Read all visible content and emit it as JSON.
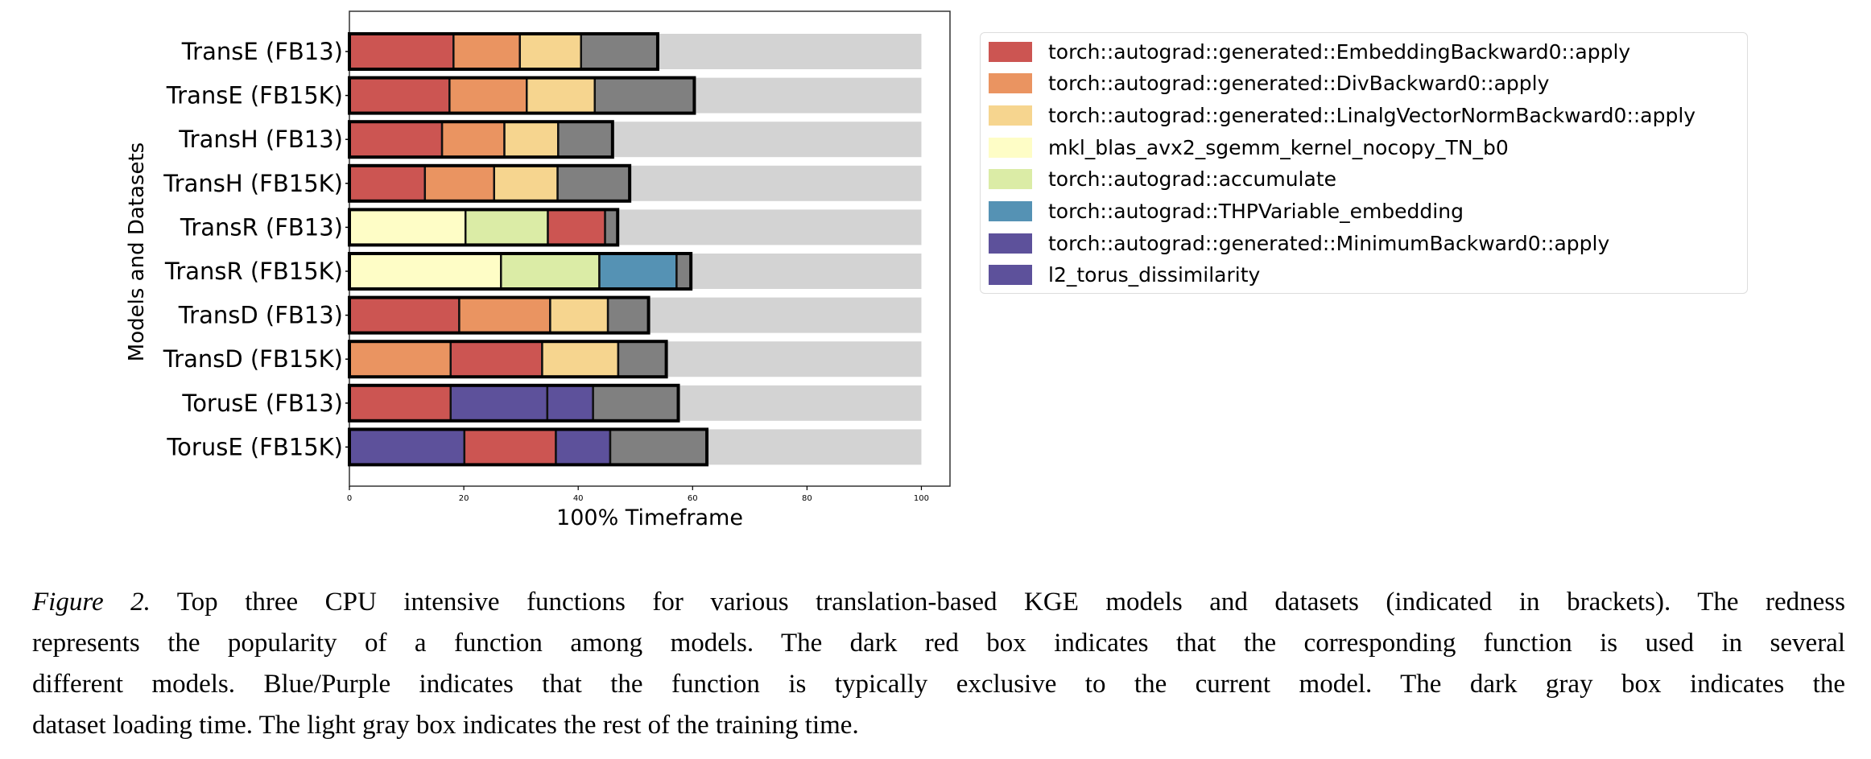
{
  "chart_data": {
    "type": "bar",
    "orientation": "horizontal",
    "stacked": true,
    "xlabel": "100% Timeframe",
    "ylabel": "Models and Datasets",
    "xlim": [
      0,
      105
    ],
    "xticks": [
      0,
      20,
      40,
      60,
      80,
      100
    ],
    "grid": false,
    "legend_placement": "outside-right",
    "categories": [
      "TransE (FB13)",
      "TransE (FB15K)",
      "TransH (FB13)",
      "TransH (FB15K)",
      "TransR (FB13)",
      "TransR (FB15K)",
      "TransD (FB13)",
      "TransD (FB15K)",
      "TorusE (FB13)",
      "TorusE (FB15K)"
    ],
    "functions": [
      {
        "name": "torch::autograd::generated::EmbeddingBackward0::apply",
        "color": "#cc5552"
      },
      {
        "name": "torch::autograd::generated::DivBackward0::apply",
        "color": "#ea9461"
      },
      {
        "name": "torch::autograd::generated::LinalgVectorNormBackward0::apply",
        "color": "#f6d58f"
      },
      {
        "name": "mkl_blas_avx2_sgemm_kernel_nocopy_TN_b0",
        "color": "#fefdc6"
      },
      {
        "name": "torch::autograd::accumulate",
        "color": "#dbeca6"
      },
      {
        "name": "torch::autograd::THPVariable_embedding",
        "color": "#5592b4"
      },
      {
        "name": "torch::autograd::generated::MinimumBackward0::apply",
        "color": "#5d519b"
      },
      {
        "name": "l2_torus_dissimilarity",
        "color": "#5d519b"
      }
    ],
    "dataset_loading_color": "#808080",
    "rest_of_training_color": "#d3d3d3",
    "total": 100,
    "bars": [
      {
        "segments": [
          [
            0,
            18.2
          ],
          [
            1,
            11.6
          ],
          [
            2,
            10.7
          ]
        ],
        "dataset_loading": 13.4
      },
      {
        "segments": [
          [
            0,
            17.5
          ],
          [
            1,
            13.5
          ],
          [
            2,
            11.9
          ]
        ],
        "dataset_loading": 17.4
      },
      {
        "segments": [
          [
            0,
            16.2
          ],
          [
            1,
            10.9
          ],
          [
            2,
            9.4
          ]
        ],
        "dataset_loading": 9.5
      },
      {
        "segments": [
          [
            0,
            13.2
          ],
          [
            1,
            12.1
          ],
          [
            2,
            11.1
          ]
        ],
        "dataset_loading": 12.6
      },
      {
        "segments": [
          [
            3,
            20.3
          ],
          [
            4,
            14.4
          ],
          [
            0,
            10.0
          ]
        ],
        "dataset_loading": 2.2
      },
      {
        "segments": [
          [
            3,
            26.5
          ],
          [
            4,
            17.2
          ],
          [
            5,
            13.5
          ]
        ],
        "dataset_loading": 2.5
      },
      {
        "segments": [
          [
            0,
            19.2
          ],
          [
            1,
            15.9
          ],
          [
            2,
            10.1
          ]
        ],
        "dataset_loading": 7.1
      },
      {
        "segments": [
          [
            1,
            17.7
          ],
          [
            0,
            16.0
          ],
          [
            2,
            13.3
          ]
        ],
        "dataset_loading": 8.4
      },
      {
        "segments": [
          [
            0,
            17.7
          ],
          [
            7,
            16.9
          ],
          [
            6,
            8.0
          ]
        ],
        "dataset_loading": 14.9
      },
      {
        "segments": [
          [
            7,
            20.1
          ],
          [
            0,
            16.0
          ],
          [
            6,
            9.5
          ]
        ],
        "dataset_loading": 16.9
      }
    ]
  },
  "caption": {
    "label": "Figure 2.",
    "lines": [
      " Top three CPU intensive functions for various translation-based KGE models and datasets (indicated in brackets). The redness",
      "represents the popularity of a function among models.  The dark red box indicates that the corresponding function is used in several",
      "different models.  Blue/Purple indicates that the function is typically exclusive to the current model.  The dark gray box indicates the",
      "dataset loading time. The light gray box indicates the rest of the training time."
    ]
  }
}
